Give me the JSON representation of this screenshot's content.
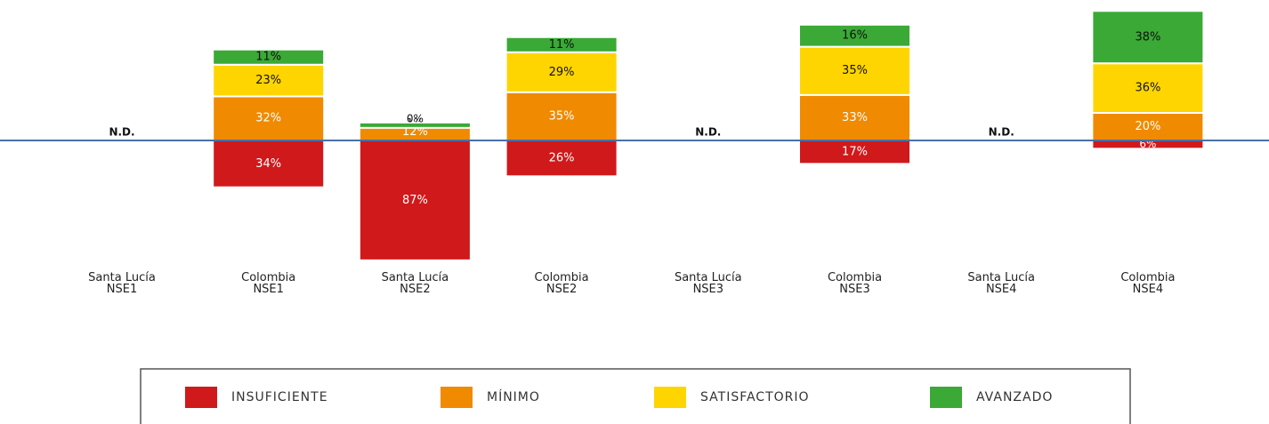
{
  "chart_data": {
    "type": "diverging_stacked_bar",
    "categories": [
      [
        "Santa Lucía",
        "NSE1"
      ],
      [
        "Colombia",
        "NSE1"
      ],
      [
        "Santa Lucía",
        "NSE2"
      ],
      [
        "Colombia",
        "NSE2"
      ],
      [
        "Santa Lucía",
        "NSE3"
      ],
      [
        "Colombia",
        "NSE3"
      ],
      [
        "Santa Lucía",
        "NSE4"
      ],
      [
        "Colombia",
        "NSE4"
      ]
    ],
    "na_label": "N.D.",
    "series": [
      {
        "name": "INSUFICIENTE",
        "color": "#d0191b",
        "direction": "down",
        "values": [
          null,
          34,
          87,
          26,
          null,
          17,
          null,
          6
        ],
        "value_labels": [
          null,
          "34%",
          "87%",
          "26%",
          null,
          "17%",
          null,
          "6%"
        ]
      },
      {
        "name": "MÍNIMO",
        "color": "#f08a00",
        "direction": "up",
        "values": [
          null,
          32,
          12,
          35,
          null,
          33,
          null,
          20
        ],
        "value_labels": [
          null,
          "32%",
          "12%",
          "35%",
          null,
          "33%",
          null,
          "20%"
        ]
      },
      {
        "name": "SATISFACTORIO",
        "color": "#ffd500",
        "direction": "up",
        "values": [
          null,
          23,
          1,
          29,
          null,
          35,
          null,
          36
        ],
        "value_labels": [
          null,
          "23%",
          "1%",
          "29%",
          null,
          "35%",
          null,
          "36%"
        ]
      },
      {
        "name": "AVANZADO",
        "color": "#3aa935",
        "direction": "up",
        "values": [
          null,
          11,
          0,
          11,
          null,
          16,
          null,
          38
        ],
        "value_labels": [
          null,
          "11%",
          "0%",
          "11%",
          null,
          "16%",
          null,
          "38%"
        ]
      }
    ]
  }
}
